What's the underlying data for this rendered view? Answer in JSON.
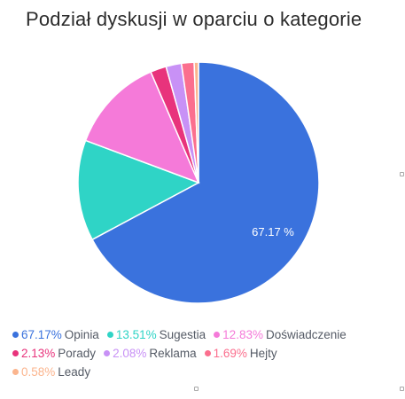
{
  "chart_data": {
    "type": "pie",
    "title": "Podział dyskusji w oparciu o kategorie",
    "slices": [
      {
        "label": "Opinia",
        "value": 67.17,
        "pct_text": "67.17%",
        "color": "#3a72dd"
      },
      {
        "label": "Sugestia",
        "value": 13.51,
        "pct_text": "13.51%",
        "color": "#2fd4c6"
      },
      {
        "label": "Doświadczenie",
        "value": 12.83,
        "pct_text": "12.83%",
        "color": "#f57ad9"
      },
      {
        "label": "Porady",
        "value": 2.13,
        "pct_text": "2.13%",
        "color": "#e8337c"
      },
      {
        "label": "Reklama",
        "value": 2.08,
        "pct_text": "2.08%",
        "color": "#c891f6"
      },
      {
        "label": "Hejty",
        "value": 1.69,
        "pct_text": "1.69%",
        "color": "#fb6f8e"
      },
      {
        "label": "Leady",
        "value": 0.58,
        "pct_text": "0.58%",
        "color": "#fbb58e"
      }
    ],
    "data_label": "67.17 %",
    "legend_position": "bottom"
  }
}
